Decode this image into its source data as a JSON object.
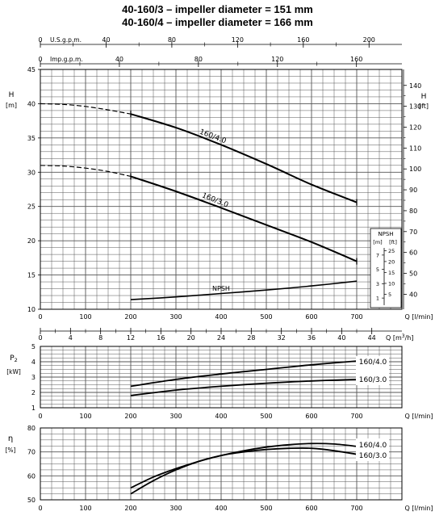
{
  "header": {
    "title_1": "40-160/3 – impeller diameter = 151 mm",
    "title_2": "40-160/4 – impeller diameter = 166 mm"
  },
  "chart_data": [
    {
      "id": "head",
      "type": "line",
      "top_axes": {
        "usgpm": {
          "label": "U.S.g.p.m.",
          "ticks": [
            0,
            40,
            80,
            120,
            160,
            200
          ],
          "minor": [
            20,
            60,
            100,
            140,
            180
          ],
          "range": [
            0,
            220
          ]
        },
        "impgpm": {
          "label": "Imp.g.p.m.",
          "ticks": [
            0,
            40,
            80,
            120,
            160
          ],
          "minor": [
            20,
            60,
            100,
            140
          ],
          "range": [
            0,
            183
          ]
        }
      },
      "xlim": [
        0,
        800
      ],
      "xticks": [
        0,
        100,
        200,
        300,
        400,
        500,
        600,
        700
      ],
      "xlabel": "Q [l/min]",
      "ylim": [
        10,
        45
      ],
      "yticks": [
        10,
        15,
        20,
        25,
        30,
        35,
        40,
        45
      ],
      "ylabel": "H",
      "ylabel_unit": "[m]",
      "right_axis": {
        "label": "H",
        "unit": "[ft]",
        "ticks": [
          40,
          50,
          60,
          70,
          80,
          90,
          100,
          110,
          120,
          130,
          140
        ],
        "factor_m_per_ft": 0.3048
      },
      "npsh_scale": {
        "title": "NPSH",
        "m_label": "[m]",
        "ft_label": "[ft]",
        "m_ticks": [
          1,
          3,
          5,
          7
        ],
        "ft_ticks": [
          5,
          10,
          15,
          20,
          25
        ],
        "m_range": [
          0,
          8
        ]
      },
      "series": [
        {
          "name": "160/4.0",
          "points": [
            [
              0,
              40.0
            ],
            [
              50,
              39.9
            ],
            [
              100,
              39.6
            ],
            [
              150,
              39.1
            ],
            [
              200,
              38.5
            ],
            [
              300,
              36.5
            ],
            [
              400,
              34.0
            ],
            [
              500,
              31.2
            ],
            [
              600,
              28.2
            ],
            [
              700,
              25.6
            ]
          ],
          "dashed_until": 200
        },
        {
          "name": "160/3.0",
          "points": [
            [
              0,
              31.0
            ],
            [
              50,
              30.9
            ],
            [
              100,
              30.6
            ],
            [
              150,
              30.1
            ],
            [
              200,
              29.4
            ],
            [
              300,
              27.2
            ],
            [
              400,
              24.8
            ],
            [
              500,
              22.3
            ],
            [
              600,
              19.8
            ],
            [
              700,
              17.0
            ]
          ],
          "dashed_until": 200
        },
        {
          "name": "NPSH",
          "points": [
            [
              200,
              11.4
            ],
            [
              300,
              11.8
            ],
            [
              400,
              12.3
            ],
            [
              500,
              12.8
            ],
            [
              600,
              13.4
            ],
            [
              700,
              14.1
            ]
          ]
        }
      ]
    },
    {
      "id": "m3h_axis",
      "type": "line",
      "xlabel": "Q [m³/h]",
      "xlabel_main": "Q [m",
      "xlabel_sup": "3",
      "xlabel_end": "/h]",
      "ticks": [
        0,
        4,
        8,
        12,
        16,
        20,
        24,
        28,
        32,
        36,
        40,
        44
      ],
      "range": [
        0,
        48
      ]
    },
    {
      "id": "power",
      "type": "line",
      "ylabel": "P",
      "ylabel_sub": "2",
      "ylabel_unit": "[kW]",
      "ylim": [
        1,
        5
      ],
      "yticks": [
        1,
        2,
        3,
        4,
        5
      ],
      "xlim": [
        0,
        800
      ],
      "xticks": [
        0,
        100,
        200,
        300,
        400,
        500,
        600,
        700
      ],
      "xlabel": "Q [l/min]",
      "series": [
        {
          "name": "160/4.0",
          "points": [
            [
              200,
              2.4
            ],
            [
              300,
              2.85
            ],
            [
              400,
              3.2
            ],
            [
              500,
              3.5
            ],
            [
              600,
              3.8
            ],
            [
              700,
              4.05
            ]
          ]
        },
        {
          "name": "160/3.0",
          "points": [
            [
              200,
              1.8
            ],
            [
              300,
              2.15
            ],
            [
              400,
              2.4
            ],
            [
              500,
              2.6
            ],
            [
              600,
              2.75
            ],
            [
              700,
              2.85
            ]
          ]
        }
      ]
    },
    {
      "id": "efficiency",
      "type": "line",
      "ylabel": "η",
      "ylabel_unit": "[%]",
      "ylim": [
        50,
        80
      ],
      "yticks": [
        50,
        60,
        70,
        80
      ],
      "xlim": [
        0,
        800
      ],
      "xticks": [
        0,
        100,
        200,
        300,
        400,
        500,
        600,
        700
      ],
      "xlabel": "Q [l/min]",
      "series": [
        {
          "name": "160/4.0",
          "points": [
            [
              200,
              55
            ],
            [
              250,
              59.5
            ],
            [
              300,
              63
            ],
            [
              350,
              66
            ],
            [
              400,
              68.5
            ],
            [
              450,
              70.5
            ],
            [
              500,
              72
            ],
            [
              550,
              73
            ],
            [
              600,
              73.5
            ],
            [
              650,
              73.3
            ],
            [
              700,
              72.3
            ]
          ]
        },
        {
          "name": "160/3.0",
          "points": [
            [
              200,
              52.5
            ],
            [
              250,
              58
            ],
            [
              300,
              62.5
            ],
            [
              350,
              66
            ],
            [
              400,
              68.5
            ],
            [
              450,
              70
            ],
            [
              500,
              71
            ],
            [
              550,
              71.5
            ],
            [
              600,
              71.5
            ],
            [
              650,
              70.5
            ],
            [
              700,
              69
            ]
          ]
        }
      ]
    }
  ],
  "colors": {
    "grid": "#555555",
    "curve": "#000000"
  }
}
